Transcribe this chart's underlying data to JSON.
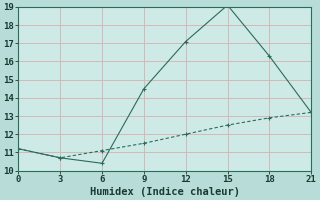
{
  "xlabel": "Humidex (Indice chaleur)",
  "xlim": [
    0,
    21
  ],
  "ylim": [
    10,
    19
  ],
  "xticks": [
    0,
    3,
    6,
    9,
    12,
    15,
    18,
    21
  ],
  "yticks": [
    10,
    11,
    12,
    13,
    14,
    15,
    16,
    17,
    18,
    19
  ],
  "bg_color": "#b8ddd8",
  "plot_bg_color": "#ceeae6",
  "line_color": "#2a6b5a",
  "grid_color": "#d4b8b8",
  "line1_x": [
    0,
    3,
    6,
    9,
    12,
    15,
    18,
    21
  ],
  "line1_y": [
    11.2,
    10.7,
    10.4,
    14.5,
    17.1,
    19.1,
    16.3,
    13.2
  ],
  "line2_x": [
    0,
    3,
    6,
    9,
    12,
    15,
    18,
    21
  ],
  "line2_y": [
    11.2,
    10.7,
    11.1,
    11.5,
    12.0,
    12.5,
    12.9,
    13.2
  ],
  "markersize": 3.5,
  "linewidth": 0.8,
  "tick_fontsize": 6.5,
  "xlabel_fontsize": 7.5
}
